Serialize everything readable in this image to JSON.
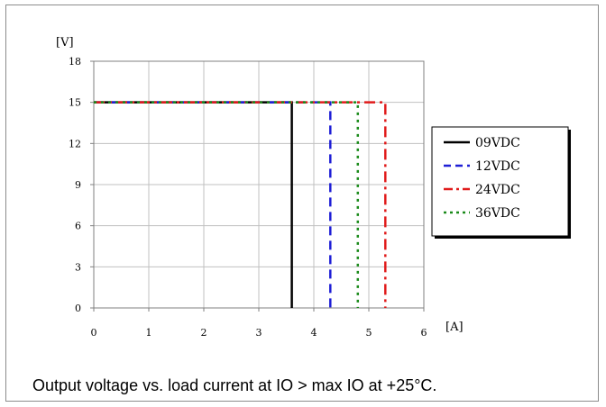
{
  "caption": "Output voltage vs. load current at IO > max IO at +25°C.",
  "chart_data": {
    "type": "line",
    "xlabel": "[A]",
    "ylabel": "[V]",
    "xlim": [
      0,
      6
    ],
    "ylim": [
      0,
      18
    ],
    "xticks": [
      0,
      1,
      2,
      3,
      4,
      5,
      6
    ],
    "yticks": [
      0,
      3,
      6,
      9,
      12,
      15,
      18
    ],
    "grid": true,
    "legend_position": "right",
    "series": [
      {
        "name": "09VDC",
        "color": "#000000",
        "dash": "solid",
        "x": [
          0,
          3.6,
          3.6
        ],
        "y": [
          15,
          15,
          0
        ]
      },
      {
        "name": "12VDC",
        "color": "#1f1fd6",
        "dash": "dash",
        "x": [
          0,
          4.3,
          4.3
        ],
        "y": [
          15,
          15,
          0
        ]
      },
      {
        "name": "24VDC",
        "color": "#e01b1b",
        "dash": "dashdot",
        "x": [
          0,
          5.3,
          5.3
        ],
        "y": [
          15,
          15,
          0
        ]
      },
      {
        "name": "36VDC",
        "color": "#1a8a1a",
        "dash": "dot",
        "x": [
          0,
          4.8,
          4.8
        ],
        "y": [
          15,
          15,
          0
        ]
      }
    ]
  }
}
